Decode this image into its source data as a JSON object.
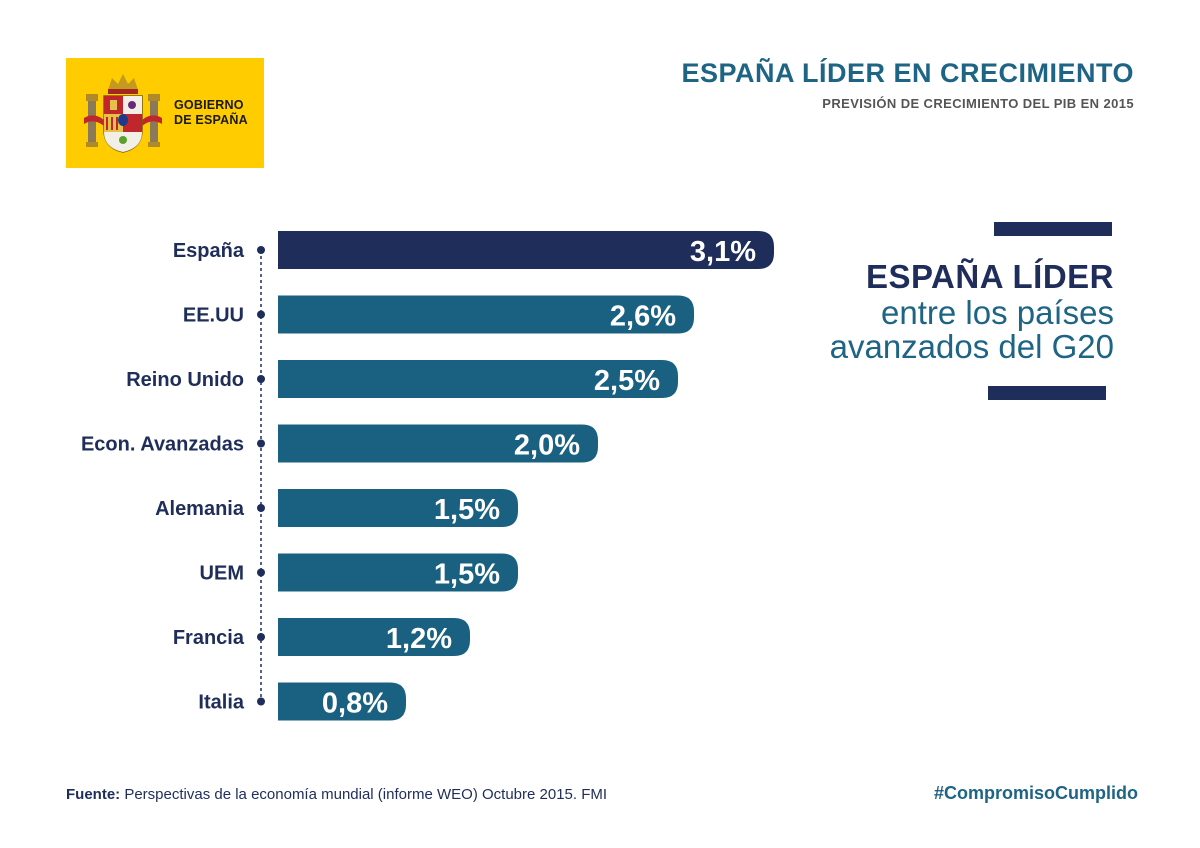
{
  "header": {
    "logo_line1": "GOBIERNO",
    "logo_line2": "DE ESPAÑA",
    "title": "ESPAÑA LÍDER EN CRECIMIENTO",
    "subtitle": "PREVISIÓN DE CRECIMIENTO DEL PIB EN 2015"
  },
  "highlight": {
    "line1": "ESPAÑA LÍDER",
    "line2": "entre los países",
    "line3": "avanzados del G20"
  },
  "footer": {
    "source_label": "Fuente:",
    "source_text": " Perspectivas de la economía mundial (informe WEO) Octubre 2015. FMI",
    "hashtag": "#CompromisoCumplido"
  },
  "colors": {
    "highlight_bar": "#1F2D5A",
    "bar": "#1A6080",
    "label": "#1F2D5A",
    "logo_bg": "#FFCC00"
  },
  "chart_data": {
    "type": "bar",
    "orientation": "horizontal",
    "title": "PREVISIÓN DE CRECIMIENTO DEL PIB EN 2015",
    "categories": [
      "España",
      "EE.UU",
      "Reino Unido",
      "Econ. Avanzadas",
      "Alemania",
      "UEM",
      "Francia",
      "Italia"
    ],
    "values": [
      3.1,
      2.6,
      2.5,
      2.0,
      1.5,
      1.5,
      1.2,
      0.8
    ],
    "value_labels": [
      "3,1%",
      "2,6%",
      "2,5%",
      "2,0%",
      "1,5%",
      "1,5%",
      "1,2%",
      "0,8%"
    ],
    "unit": "%",
    "highlight_index": 0
  }
}
